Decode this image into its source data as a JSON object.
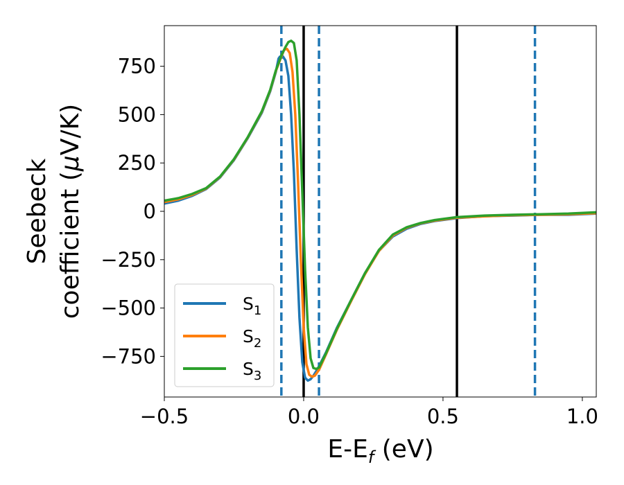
{
  "chart_data": {
    "type": "line",
    "xlabel": {
      "main": "E-E",
      "sub": "f",
      "suffix": " (eV)"
    },
    "ylabel": {
      "line1": "Seebeck",
      "line2_prefix": "coefficient  (",
      "mu": "μ",
      "line2_suffix": "V/K)"
    },
    "xlim": [
      -0.5,
      1.05
    ],
    "ylim": [
      -960,
      960
    ],
    "xticks": [
      -0.5,
      0.0,
      0.5,
      1.0
    ],
    "xtick_labels": [
      "−0.5",
      "0.0",
      "0.5",
      "1.0"
    ],
    "yticks": [
      750,
      500,
      250,
      0,
      -250,
      -500,
      -750
    ],
    "ytick_labels": [
      "750",
      "500",
      "250",
      "0",
      "−250",
      "−500",
      "−750"
    ],
    "grid": false,
    "legend_position": "lower-left",
    "vlines_solid": [
      0.0,
      0.55
    ],
    "vlines_dashed": [
      -0.08,
      0.055,
      0.83
    ],
    "series": [
      {
        "name": "S",
        "sub": "1",
        "color": "#1f77b4",
        "points": [
          [
            -0.5,
            40
          ],
          [
            -0.45,
            55
          ],
          [
            -0.4,
            80
          ],
          [
            -0.35,
            115
          ],
          [
            -0.3,
            175
          ],
          [
            -0.25,
            265
          ],
          [
            -0.2,
            380
          ],
          [
            -0.15,
            510
          ],
          [
            -0.12,
            620
          ],
          [
            -0.1,
            720
          ],
          [
            -0.09,
            790
          ],
          [
            -0.085,
            800
          ],
          [
            -0.075,
            802
          ],
          [
            -0.065,
            780
          ],
          [
            -0.055,
            700
          ],
          [
            -0.045,
            500
          ],
          [
            -0.035,
            200
          ],
          [
            -0.025,
            -200
          ],
          [
            -0.015,
            -550
          ],
          [
            -0.005,
            -780
          ],
          [
            0.005,
            -860
          ],
          [
            0.015,
            -875
          ],
          [
            0.025,
            -868
          ],
          [
            0.035,
            -850
          ],
          [
            0.05,
            -815
          ],
          [
            0.08,
            -730
          ],
          [
            0.12,
            -600
          ],
          [
            0.17,
            -460
          ],
          [
            0.22,
            -320
          ],
          [
            0.27,
            -205
          ],
          [
            0.32,
            -130
          ],
          [
            0.37,
            -90
          ],
          [
            0.42,
            -65
          ],
          [
            0.47,
            -50
          ],
          [
            0.55,
            -35
          ],
          [
            0.65,
            -25
          ],
          [
            0.75,
            -22
          ],
          [
            0.85,
            -18
          ],
          [
            0.95,
            -18
          ],
          [
            1.05,
            -12
          ]
        ]
      },
      {
        "name": "S",
        "sub": "2",
        "color": "#ff7f0e",
        "points": [
          [
            -0.5,
            48
          ],
          [
            -0.45,
            62
          ],
          [
            -0.4,
            85
          ],
          [
            -0.35,
            118
          ],
          [
            -0.3,
            178
          ],
          [
            -0.25,
            268
          ],
          [
            -0.2,
            383
          ],
          [
            -0.15,
            515
          ],
          [
            -0.12,
            625
          ],
          [
            -0.1,
            725
          ],
          [
            -0.08,
            800
          ],
          [
            -0.07,
            835
          ],
          [
            -0.06,
            840
          ],
          [
            -0.05,
            818
          ],
          [
            -0.04,
            720
          ],
          [
            -0.03,
            500
          ],
          [
            -0.02,
            150
          ],
          [
            -0.01,
            -250
          ],
          [
            0.0,
            -600
          ],
          [
            0.01,
            -790
          ],
          [
            0.02,
            -845
          ],
          [
            0.03,
            -855
          ],
          [
            0.04,
            -850
          ],
          [
            0.055,
            -820
          ],
          [
            0.08,
            -740
          ],
          [
            0.12,
            -610
          ],
          [
            0.17,
            -465
          ],
          [
            0.22,
            -325
          ],
          [
            0.27,
            -205
          ],
          [
            0.32,
            -125
          ],
          [
            0.37,
            -85
          ],
          [
            0.42,
            -62
          ],
          [
            0.47,
            -48
          ],
          [
            0.55,
            -33
          ],
          [
            0.65,
            -26
          ],
          [
            0.75,
            -20
          ],
          [
            0.85,
            -18
          ],
          [
            0.95,
            -15
          ],
          [
            1.05,
            -10
          ]
        ]
      },
      {
        "name": "S",
        "sub": "3",
        "color": "#2ca02c",
        "points": [
          [
            -0.5,
            55
          ],
          [
            -0.45,
            68
          ],
          [
            -0.4,
            90
          ],
          [
            -0.35,
            120
          ],
          [
            -0.3,
            180
          ],
          [
            -0.25,
            270
          ],
          [
            -0.2,
            385
          ],
          [
            -0.15,
            518
          ],
          [
            -0.12,
            628
          ],
          [
            -0.1,
            728
          ],
          [
            -0.08,
            805
          ],
          [
            -0.065,
            850
          ],
          [
            -0.055,
            875
          ],
          [
            -0.045,
            882
          ],
          [
            -0.035,
            870
          ],
          [
            -0.025,
            780
          ],
          [
            -0.015,
            500
          ],
          [
            -0.005,
            100
          ],
          [
            0.005,
            -300
          ],
          [
            0.015,
            -600
          ],
          [
            0.025,
            -760
          ],
          [
            0.035,
            -810
          ],
          [
            0.045,
            -815
          ],
          [
            0.055,
            -808
          ],
          [
            0.08,
            -735
          ],
          [
            0.12,
            -605
          ],
          [
            0.17,
            -460
          ],
          [
            0.22,
            -320
          ],
          [
            0.27,
            -200
          ],
          [
            0.32,
            -120
          ],
          [
            0.37,
            -82
          ],
          [
            0.42,
            -60
          ],
          [
            0.47,
            -45
          ],
          [
            0.55,
            -30
          ],
          [
            0.65,
            -22
          ],
          [
            0.75,
            -18
          ],
          [
            0.85,
            -15
          ],
          [
            0.95,
            -12
          ],
          [
            1.05,
            -5
          ]
        ]
      }
    ]
  }
}
